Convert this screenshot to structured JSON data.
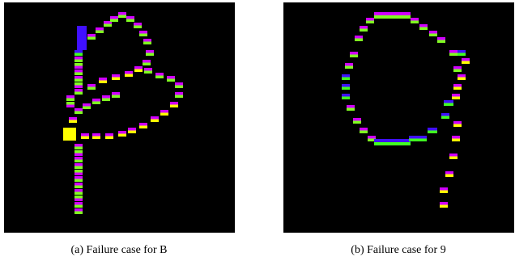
{
  "figure": {
    "panels": [
      {
        "caption": "(a) Failure case for B"
      },
      {
        "caption": "(b) Failure case for 9"
      }
    ]
  }
}
